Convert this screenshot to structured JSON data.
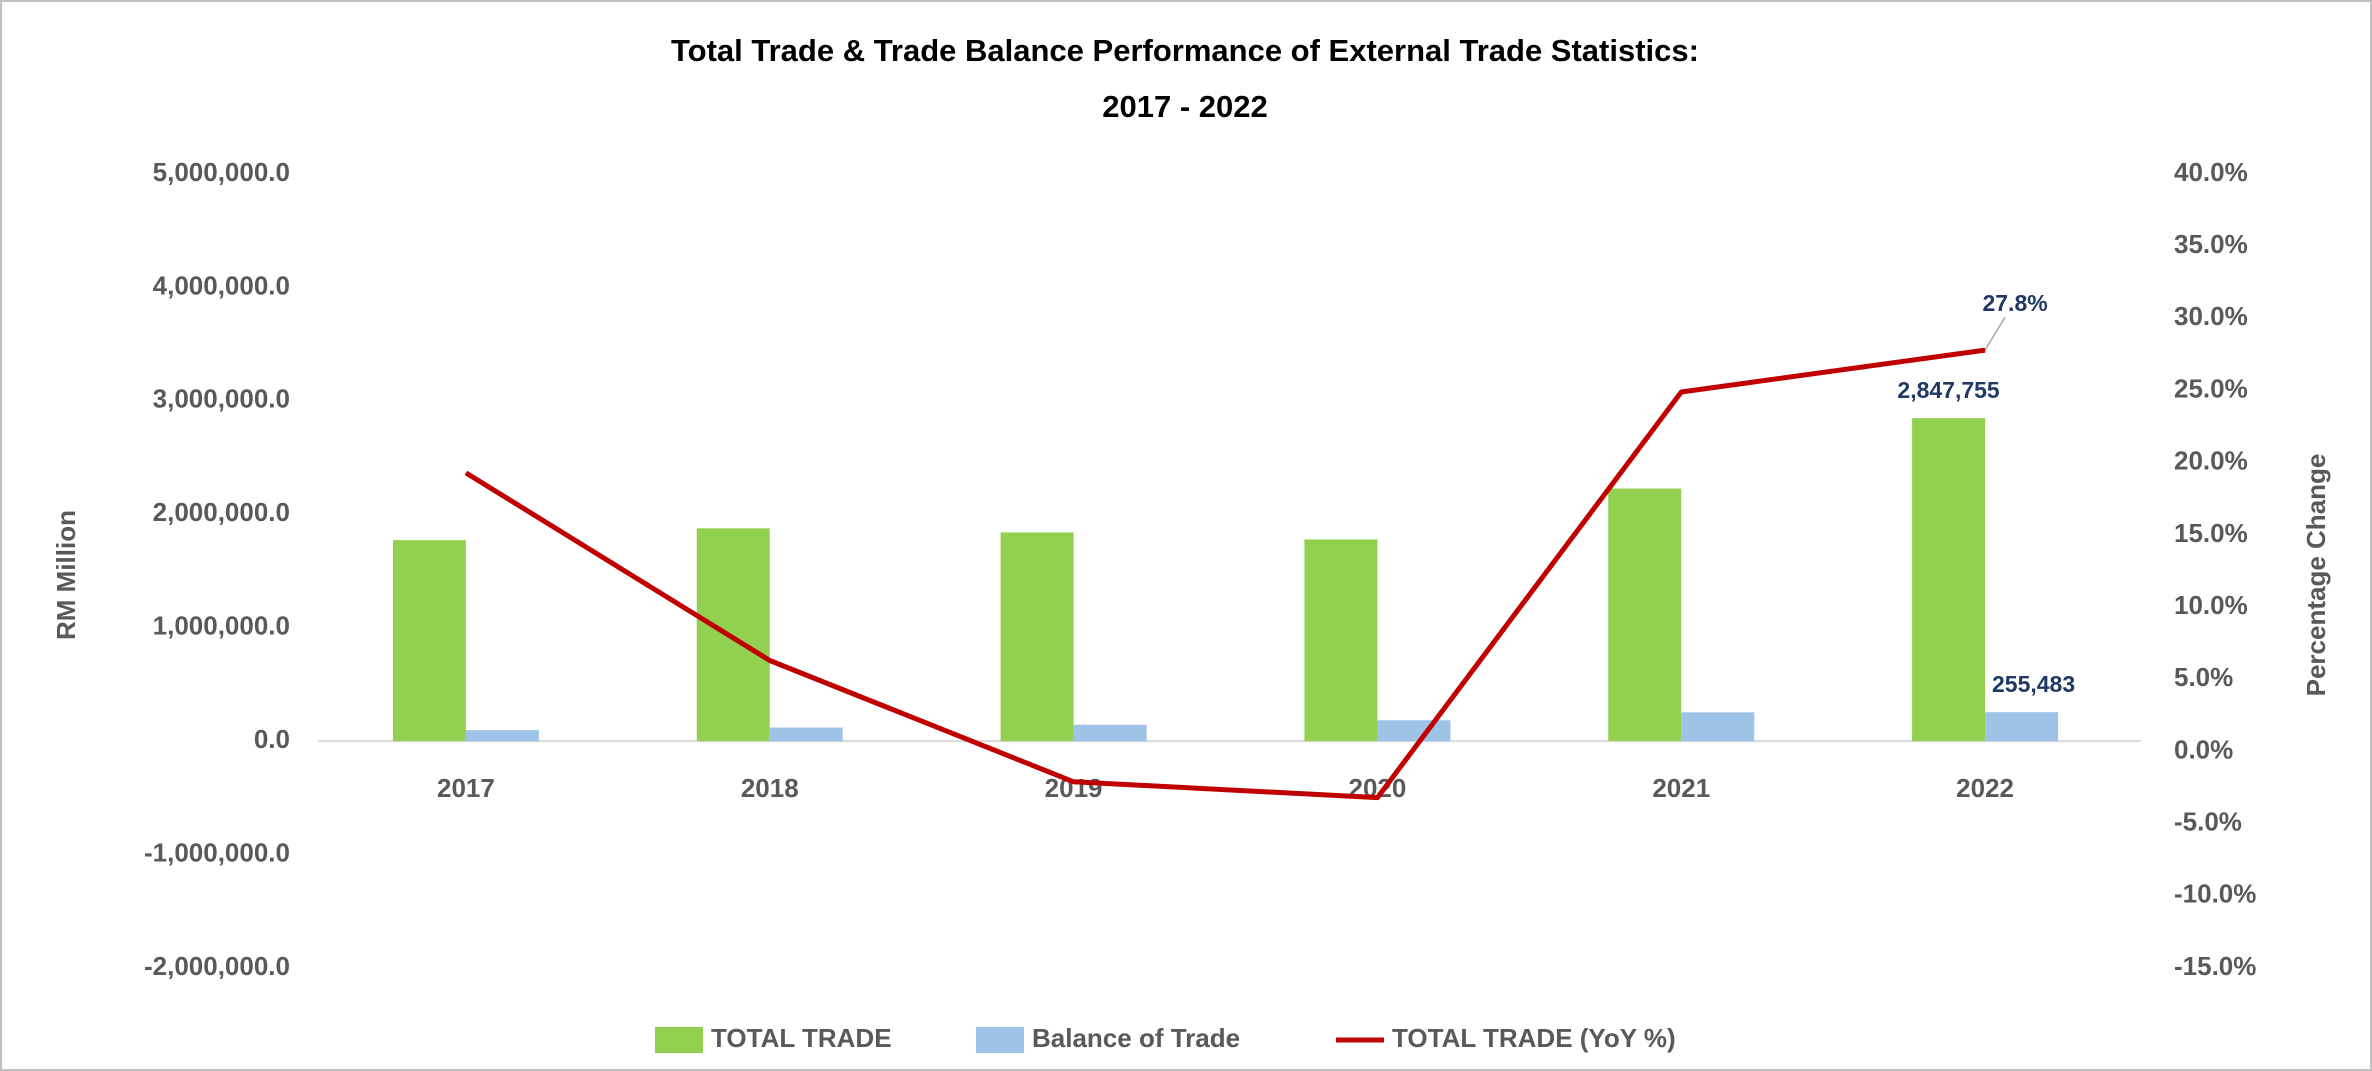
{
  "chart_data": {
    "type": "bar-line",
    "title": [
      "Total Trade & Trade Balance Performance of External Trade Statistics:",
      "2017 - 2022"
    ],
    "y_label": "RM Million",
    "y2_label": "Percentage Change",
    "categories": [
      "2017",
      "2018",
      "2019",
      "2020",
      "2021",
      "2022"
    ],
    "series": [
      {
        "name": "TOTAL TRADE",
        "type": "bar",
        "color": "#92d050",
        "values": [
          1772000,
          1876000,
          1840000,
          1778000,
          2227000,
          2847755
        ],
        "value_labels": [
          null,
          null,
          null,
          null,
          null,
          "2,847,755"
        ]
      },
      {
        "name": "Balance of Trade",
        "type": "bar",
        "color": "#9dc3e6",
        "values": [
          97000,
          120000,
          144000,
          184000,
          254000,
          255483
        ],
        "value_labels": [
          null,
          null,
          null,
          null,
          null,
          "255,483"
        ]
      },
      {
        "name": "TOTAL TRADE (YoY %)",
        "type": "line",
        "axis": "y2",
        "color": "#c00000",
        "values": [
          19.3,
          6.3,
          -2.1,
          -3.2,
          24.9,
          27.8
        ],
        "value_labels": [
          null,
          null,
          null,
          null,
          null,
          "27.8%"
        ]
      }
    ],
    "ylim": [
      -2000000,
      5000000
    ],
    "yticks": [
      {
        "value": -2000000,
        "label": "-2,000,000.0"
      },
      {
        "value": -1000000,
        "label": "-1,000,000.0"
      },
      {
        "value": 0,
        "label": "0.0"
      },
      {
        "value": 1000000,
        "label": "1,000,000.0"
      },
      {
        "value": 2000000,
        "label": "2,000,000.0"
      },
      {
        "value": 3000000,
        "label": "3,000,000.0"
      },
      {
        "value": 4000000,
        "label": "4,000,000.0"
      },
      {
        "value": 5000000,
        "label": "5,000,000.0"
      }
    ],
    "y2lim": [
      -15,
      40
    ],
    "y2ticks": [
      {
        "value": -15,
        "label": "-15.0%"
      },
      {
        "value": -10,
        "label": "-10.0%"
      },
      {
        "value": -5,
        "label": "-5.0%"
      },
      {
        "value": 0,
        "label": "0.0%"
      },
      {
        "value": 5,
        "label": "5.0%"
      },
      {
        "value": 10,
        "label": "10.0%"
      },
      {
        "value": 15,
        "label": "15.0%"
      },
      {
        "value": 20,
        "label": "20.0%"
      },
      {
        "value": 25,
        "label": "25.0%"
      },
      {
        "value": 30,
        "label": "30.0%"
      },
      {
        "value": 35,
        "label": "35.0%"
      },
      {
        "value": 40,
        "label": "40.0%"
      }
    ],
    "grid": false,
    "legend": "bottom"
  }
}
